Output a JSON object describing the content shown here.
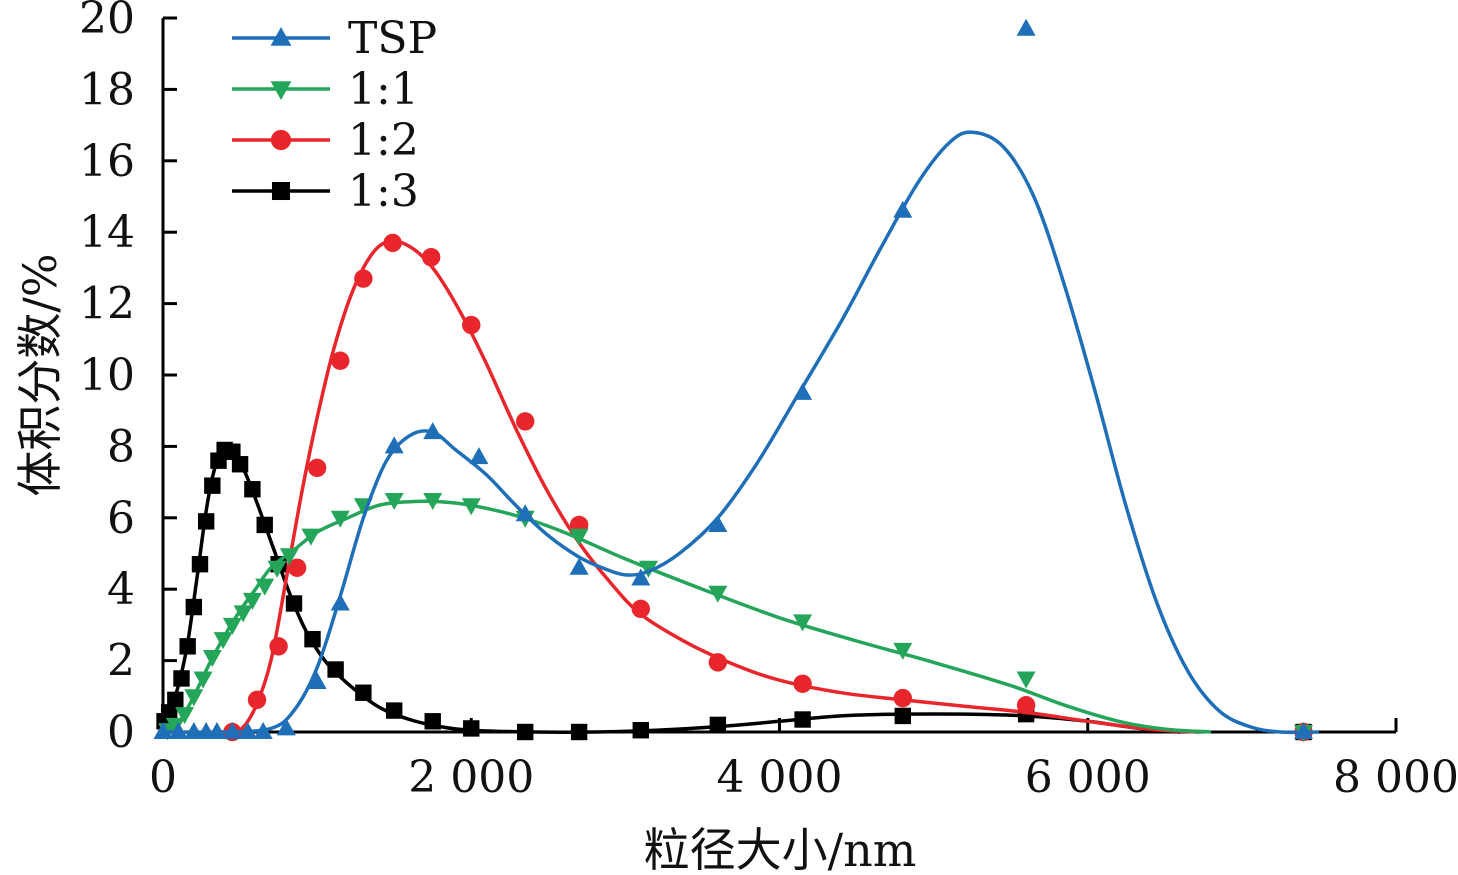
{
  "chart_data": {
    "type": "line",
    "xlabel": "粒径大小/nm",
    "ylabel": "体积分数/%",
    "xlim": [
      0,
      8000
    ],
    "ylim": [
      0,
      20
    ],
    "xticks": [
      0,
      2000,
      4000,
      6000,
      8000
    ],
    "xtick_labels": [
      "0",
      "2 000",
      "4 000",
      "6 000",
      "8 000"
    ],
    "yticks": [
      0,
      2,
      4,
      6,
      8,
      10,
      12,
      14,
      16,
      18,
      20
    ],
    "ytick_labels": [
      "0",
      "2",
      "4",
      "6",
      "8",
      "10",
      "12",
      "14",
      "16",
      "18",
      "20"
    ],
    "grid": false,
    "legend_position": "top-left",
    "series": [
      {
        "name": "TSP",
        "color": "#1f6fb8",
        "marker": "triangle-up",
        "curve": [
          [
            0,
            0
          ],
          [
            400,
            0
          ],
          [
            700,
            0.1
          ],
          [
            850,
            0.6
          ],
          [
            1000,
            1.8
          ],
          [
            1150,
            3.8
          ],
          [
            1300,
            6.0
          ],
          [
            1450,
            7.6
          ],
          [
            1600,
            8.3
          ],
          [
            1750,
            8.4
          ],
          [
            1900,
            7.9
          ],
          [
            2100,
            7.2
          ],
          [
            2300,
            6.3
          ],
          [
            2500,
            5.5
          ],
          [
            2700,
            4.9
          ],
          [
            2850,
            4.6
          ],
          [
            3000,
            4.4
          ],
          [
            3150,
            4.5
          ],
          [
            3350,
            5.0
          ],
          [
            3600,
            6.0
          ],
          [
            3850,
            7.5
          ],
          [
            4100,
            9.3
          ],
          [
            4400,
            11.5
          ],
          [
            4650,
            13.5
          ],
          [
            4900,
            15.4
          ],
          [
            5100,
            16.5
          ],
          [
            5250,
            16.8
          ],
          [
            5450,
            16.4
          ],
          [
            5650,
            15.0
          ],
          [
            5850,
            12.5
          ],
          [
            6050,
            9.5
          ],
          [
            6250,
            6.3
          ],
          [
            6450,
            3.6
          ],
          [
            6650,
            1.7
          ],
          [
            6850,
            0.6
          ],
          [
            7050,
            0.15
          ],
          [
            7250,
            0.0
          ],
          [
            7500,
            0.0
          ]
        ],
        "markers": [
          [
            0,
            0
          ],
          [
            100,
            0
          ],
          [
            200,
            0
          ],
          [
            280,
            0
          ],
          [
            350,
            0
          ],
          [
            450,
            0
          ],
          [
            550,
            0
          ],
          [
            650,
            0
          ],
          [
            800,
            0.1
          ],
          [
            1000,
            1.4
          ],
          [
            1150,
            3.6
          ],
          [
            1500,
            8.0
          ],
          [
            1750,
            8.4
          ],
          [
            2050,
            7.7
          ],
          [
            2350,
            6.1
          ],
          [
            2700,
            4.6
          ],
          [
            3100,
            4.3
          ],
          [
            3600,
            5.8
          ],
          [
            4150,
            9.5
          ],
          [
            4800,
            14.6
          ],
          [
            5600,
            19.7
          ],
          [
            7400,
            0.0
          ]
        ]
      },
      {
        "name": "1:1",
        "color": "#25a55a",
        "marker": "triangle-down",
        "curve": [
          [
            0,
            0
          ],
          [
            100,
            0.25
          ],
          [
            200,
            1.0
          ],
          [
            300,
            1.9
          ],
          [
            400,
            2.7
          ],
          [
            500,
            3.4
          ],
          [
            600,
            4.0
          ],
          [
            700,
            4.6
          ],
          [
            850,
            5.1
          ],
          [
            1000,
            5.6
          ],
          [
            1200,
            6.0
          ],
          [
            1400,
            6.35
          ],
          [
            1600,
            6.45
          ],
          [
            1800,
            6.45
          ],
          [
            2000,
            6.35
          ],
          [
            2300,
            6.05
          ],
          [
            2600,
            5.6
          ],
          [
            3000,
            4.85
          ],
          [
            3500,
            4.0
          ],
          [
            4000,
            3.2
          ],
          [
            4500,
            2.55
          ],
          [
            5000,
            1.95
          ],
          [
            5500,
            1.3
          ],
          [
            5850,
            0.75
          ],
          [
            6200,
            0.3
          ],
          [
            6500,
            0.08
          ],
          [
            6800,
            0
          ]
        ],
        "markers": [
          [
            30,
            0.05
          ],
          [
            80,
            0.2
          ],
          [
            140,
            0.5
          ],
          [
            200,
            1.0
          ],
          [
            260,
            1.5
          ],
          [
            320,
            2.1
          ],
          [
            390,
            2.6
          ],
          [
            450,
            3.0
          ],
          [
            520,
            3.35
          ],
          [
            580,
            3.7
          ],
          [
            660,
            4.1
          ],
          [
            740,
            4.6
          ],
          [
            820,
            4.95
          ],
          [
            960,
            5.5
          ],
          [
            1150,
            6.0
          ],
          [
            1300,
            6.35
          ],
          [
            1500,
            6.5
          ],
          [
            1750,
            6.5
          ],
          [
            2000,
            6.35
          ],
          [
            2350,
            6.0
          ],
          [
            2700,
            5.5
          ],
          [
            3150,
            4.6
          ],
          [
            3600,
            3.9
          ],
          [
            4150,
            3.1
          ],
          [
            4800,
            2.3
          ],
          [
            5600,
            1.5
          ],
          [
            7400,
            0.0
          ]
        ]
      },
      {
        "name": "1:2",
        "color": "#e8262b",
        "marker": "circle",
        "curve": [
          [
            0,
            0
          ],
          [
            400,
            0
          ],
          [
            500,
            0.05
          ],
          [
            600,
            0.7
          ],
          [
            700,
            2.0
          ],
          [
            800,
            4.3
          ],
          [
            900,
            6.7
          ],
          [
            1000,
            8.8
          ],
          [
            1100,
            10.6
          ],
          [
            1200,
            12.0
          ],
          [
            1300,
            13.0
          ],
          [
            1400,
            13.6
          ],
          [
            1500,
            13.75
          ],
          [
            1600,
            13.6
          ],
          [
            1700,
            13.25
          ],
          [
            1800,
            12.7
          ],
          [
            1950,
            11.6
          ],
          [
            2100,
            10.3
          ],
          [
            2300,
            8.4
          ],
          [
            2500,
            6.7
          ],
          [
            2700,
            5.3
          ],
          [
            2900,
            4.2
          ],
          [
            3100,
            3.3
          ],
          [
            3400,
            2.5
          ],
          [
            3700,
            1.9
          ],
          [
            4000,
            1.45
          ],
          [
            4400,
            1.1
          ],
          [
            4800,
            0.9
          ],
          [
            5200,
            0.72
          ],
          [
            5600,
            0.55
          ],
          [
            6000,
            0.3
          ],
          [
            6400,
            0.08
          ],
          [
            6700,
            0
          ]
        ],
        "markers": [
          [
            450,
            0
          ],
          [
            610,
            0.9
          ],
          [
            750,
            2.4
          ],
          [
            870,
            4.6
          ],
          [
            1000,
            7.4
          ],
          [
            1150,
            10.4
          ],
          [
            1300,
            12.7
          ],
          [
            1490,
            13.7
          ],
          [
            1740,
            13.3
          ],
          [
            2000,
            11.4
          ],
          [
            2350,
            8.7
          ],
          [
            2700,
            5.8
          ],
          [
            3100,
            3.45
          ],
          [
            3600,
            1.95
          ],
          [
            4150,
            1.35
          ],
          [
            4800,
            0.95
          ],
          [
            5600,
            0.75
          ],
          [
            7400,
            0.0
          ]
        ]
      },
      {
        "name": "1:3",
        "color": "#000000",
        "marker": "square",
        "curve": [
          [
            0,
            0.4
          ],
          [
            50,
            0.7
          ],
          [
            100,
            1.3
          ],
          [
            160,
            2.5
          ],
          [
            220,
            4.3
          ],
          [
            280,
            6.2
          ],
          [
            330,
            7.3
          ],
          [
            380,
            7.85
          ],
          [
            430,
            7.95
          ],
          [
            480,
            7.7
          ],
          [
            540,
            7.2
          ],
          [
            620,
            6.3
          ],
          [
            720,
            5.1
          ],
          [
            820,
            3.9
          ],
          [
            920,
            2.9
          ],
          [
            1050,
            2.0
          ],
          [
            1200,
            1.35
          ],
          [
            1400,
            0.7
          ],
          [
            1600,
            0.35
          ],
          [
            1800,
            0.15
          ],
          [
            2000,
            0.05
          ],
          [
            2400,
            0.0
          ],
          [
            2800,
            0.0
          ],
          [
            3200,
            0.05
          ],
          [
            3600,
            0.15
          ],
          [
            4000,
            0.3
          ],
          [
            4400,
            0.45
          ],
          [
            4800,
            0.5
          ],
          [
            5200,
            0.5
          ],
          [
            5600,
            0.45
          ],
          [
            6000,
            0.3
          ],
          [
            6300,
            0.12
          ],
          [
            6600,
            0
          ]
        ],
        "markers": [
          [
            10,
            0.3
          ],
          [
            40,
            0.55
          ],
          [
            80,
            0.9
          ],
          [
            120,
            1.5
          ],
          [
            160,
            2.4
          ],
          [
            200,
            3.5
          ],
          [
            240,
            4.7
          ],
          [
            280,
            5.9
          ],
          [
            320,
            6.9
          ],
          [
            360,
            7.6
          ],
          [
            400,
            7.9
          ],
          [
            450,
            7.85
          ],
          [
            500,
            7.5
          ],
          [
            580,
            6.8
          ],
          [
            660,
            5.8
          ],
          [
            750,
            4.7
          ],
          [
            850,
            3.6
          ],
          [
            970,
            2.6
          ],
          [
            1120,
            1.75
          ],
          [
            1300,
            1.1
          ],
          [
            1500,
            0.6
          ],
          [
            1750,
            0.3
          ],
          [
            2000,
            0.1
          ],
          [
            2350,
            0.0
          ],
          [
            2700,
            0.0
          ],
          [
            3100,
            0.05
          ],
          [
            3600,
            0.2
          ],
          [
            4150,
            0.35
          ],
          [
            4800,
            0.45
          ],
          [
            5600,
            0.5
          ],
          [
            7400,
            0.0
          ]
        ]
      }
    ]
  }
}
